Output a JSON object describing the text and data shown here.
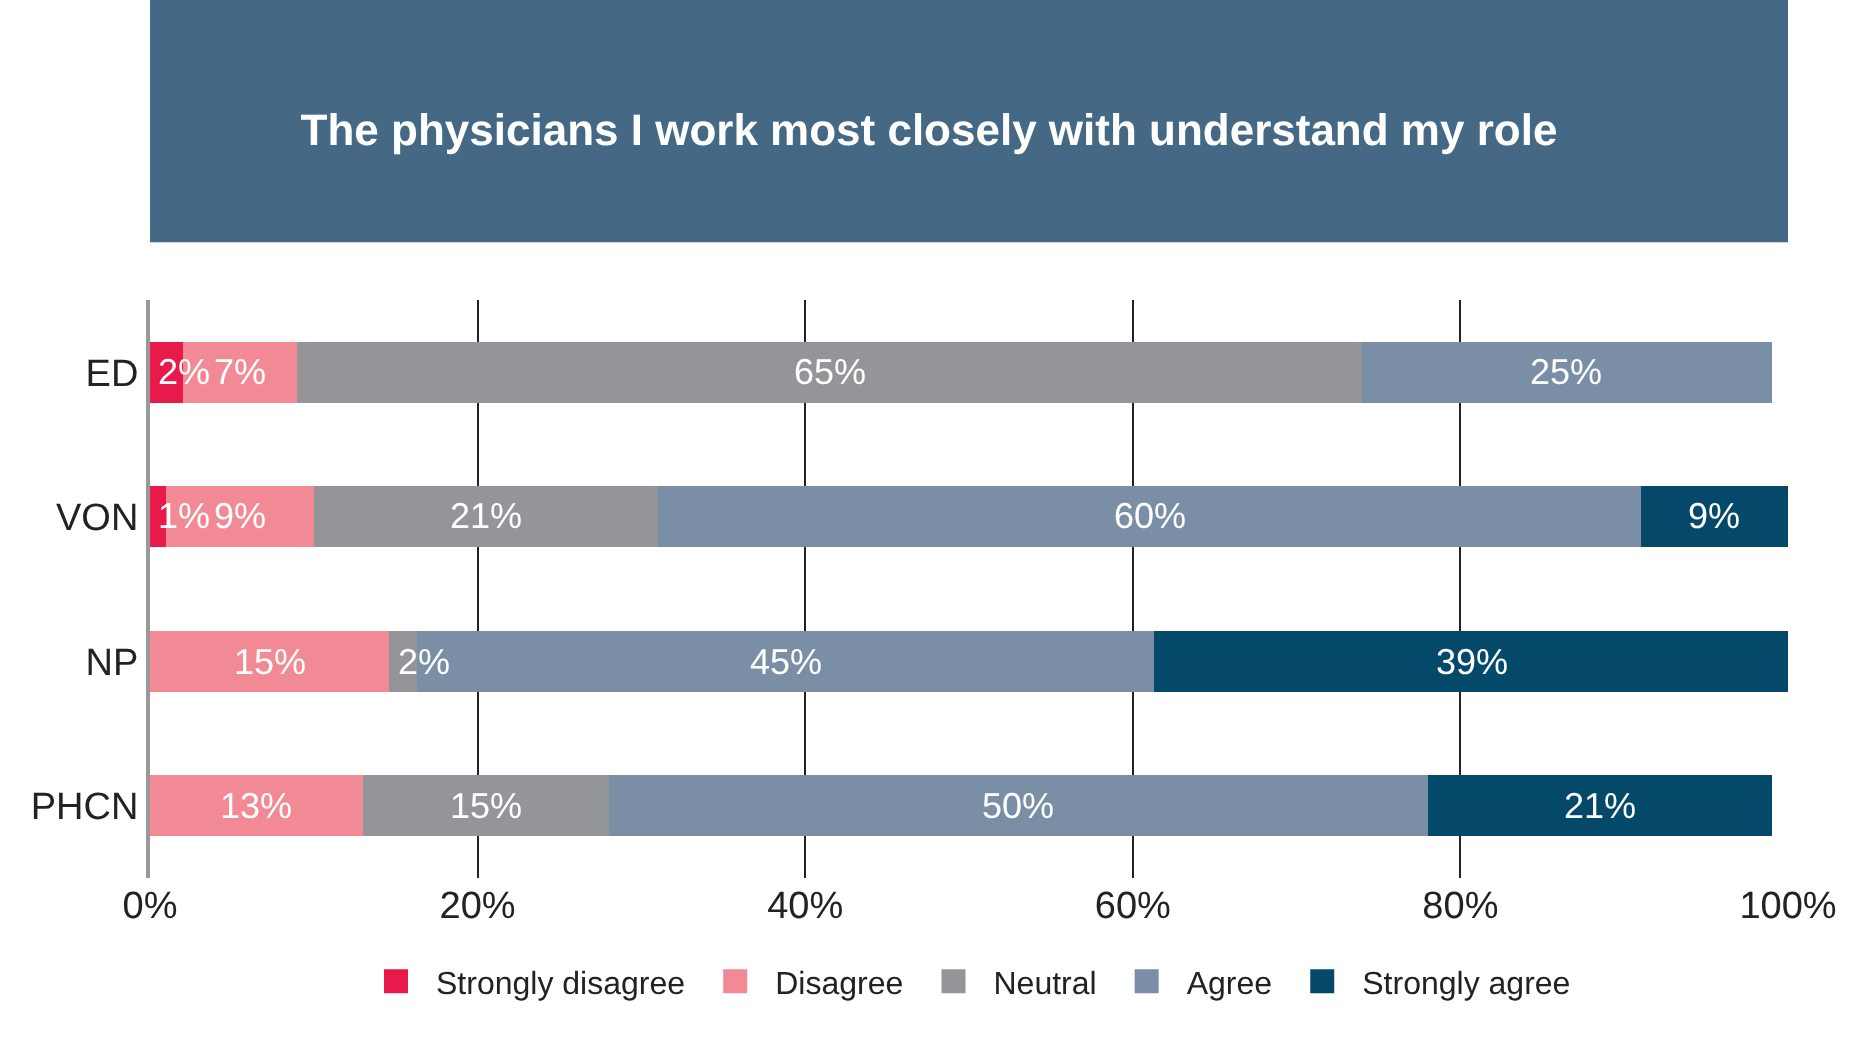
{
  "chart_data": {
    "type": "bar",
    "orientation": "horizontal",
    "stacked": true,
    "title": "The physicians I work most closely with understand my role",
    "categories": [
      "ED",
      "VON",
      "NP",
      "PHCN"
    ],
    "series": [
      {
        "name": "Strongly disagree",
        "color": "#e8194b",
        "values": [
          2,
          1,
          0,
          0
        ],
        "value_labels": [
          "2%",
          "1%",
          null,
          null
        ]
      },
      {
        "name": "Disagree",
        "color": "#f28a96",
        "values": [
          7,
          9,
          14.6,
          13
        ],
        "value_labels": [
          "7%",
          "9%",
          "15%",
          "13%"
        ]
      },
      {
        "name": "Neutral",
        "color": "#939598",
        "values": [
          65,
          21,
          1.7,
          15
        ],
        "value_labels": [
          "65%",
          "21%",
          "2%",
          "15%"
        ]
      },
      {
        "name": "Agree",
        "color": "#7a8fa6",
        "values": [
          25,
          60,
          45,
          50
        ],
        "value_labels": [
          "25%",
          "60%",
          "45%",
          "50%"
        ]
      },
      {
        "name": "Strongly agree",
        "color": "#05496a",
        "values": [
          0,
          9,
          38.7,
          21
        ],
        "value_labels": [
          null,
          "9%",
          "39%",
          "21%"
        ]
      }
    ],
    "xlim": [
      0,
      100
    ],
    "xticks": [
      {
        "value": 0,
        "label": "0%"
      },
      {
        "value": 20,
        "label": "20%"
      },
      {
        "value": 40,
        "label": "40%"
      },
      {
        "value": 60,
        "label": "60%"
      },
      {
        "value": 80,
        "label": "80%"
      },
      {
        "value": 100,
        "label": "100%"
      }
    ],
    "grid": "x",
    "legend": "bottom"
  }
}
